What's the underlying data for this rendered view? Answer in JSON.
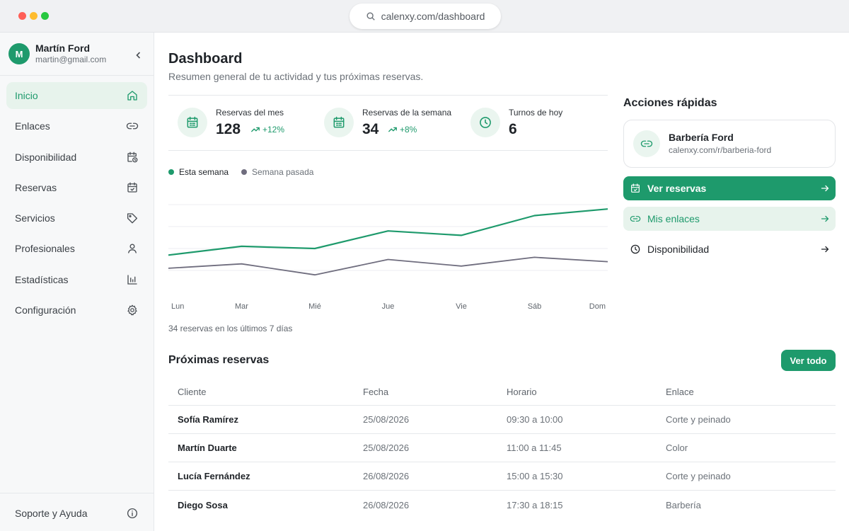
{
  "browser": {
    "url": "calenxy.com/dashboard"
  },
  "user": {
    "initial": "M",
    "name": "Martín Ford",
    "email": "martin@gmail.com"
  },
  "sidebar": {
    "items": [
      {
        "label": "Inicio",
        "icon": "home-icon",
        "active": true
      },
      {
        "label": "Enlaces",
        "icon": "link-icon"
      },
      {
        "label": "Disponibilidad",
        "icon": "calendar-clock-icon"
      },
      {
        "label": "Reservas",
        "icon": "calendar-check-icon"
      },
      {
        "label": "Servicios",
        "icon": "tag-icon"
      },
      {
        "label": "Profesionales",
        "icon": "user-icon"
      },
      {
        "label": "Estadísticas",
        "icon": "bar-chart-icon"
      },
      {
        "label": "Configuración",
        "icon": "gear-icon"
      }
    ],
    "support": {
      "label": "Soporte y Ayuda",
      "icon": "info-icon"
    }
  },
  "page": {
    "title": "Dashboard",
    "subtitle": "Resumen general de tu actividad y tus próximas reservas."
  },
  "stats": [
    {
      "label": "Reservas del mes",
      "value": "128",
      "trend": "+12%",
      "icon": "calendar-list-icon"
    },
    {
      "label": "Reservas de la semana",
      "value": "34",
      "trend": "+8%",
      "icon": "calendar-list-icon"
    },
    {
      "label": "Turnos de hoy",
      "value": "6",
      "icon": "clock-icon"
    }
  ],
  "chart_data": {
    "type": "line",
    "x": [
      "Lun",
      "Mar",
      "Mié",
      "Jue",
      "Vie",
      "Sáb",
      "Dom"
    ],
    "series": [
      {
        "name": "Esta semana",
        "color": "#1e9a6c",
        "values": [
          3.4,
          4.2,
          4.0,
          5.6,
          5.2,
          7.0,
          7.6
        ]
      },
      {
        "name": "Semana pasada",
        "color": "#6f6d7e",
        "values": [
          2.2,
          2.6,
          1.6,
          3.0,
          2.4,
          3.2,
          2.8
        ]
      }
    ],
    "ylim": [
      0,
      10
    ],
    "grid": true,
    "legend": "top-left",
    "caption": "34 reservas en los últimos 7 días"
  },
  "quick_actions": {
    "title": "Acciones rápidas",
    "link_card": {
      "name": "Barbería Ford",
      "url": "calenxy.com/r/barberia-ford",
      "icon": "link-icon"
    },
    "buttons": [
      {
        "label": "Ver reservas",
        "icon": "calendar-check-icon",
        "style": "primary"
      },
      {
        "label": "Mis enlaces",
        "icon": "link-icon",
        "style": "secondary"
      },
      {
        "label": "Disponibilidad",
        "icon": "clock-icon",
        "style": "plain"
      }
    ]
  },
  "upcoming": {
    "title": "Próximas reservas",
    "see_all": "Ver todo",
    "columns": [
      "Cliente",
      "Fecha",
      "Horario",
      "Enlace"
    ],
    "rows": [
      [
        "Sofía Ramírez",
        "25/08/2026",
        "09:30 a 10:00",
        "Corte y peinado"
      ],
      [
        "Martín Duarte",
        "25/08/2026",
        "11:00 a 11:45",
        "Color"
      ],
      [
        "Lucía Fernández",
        "26/08/2026",
        "15:00 a 15:30",
        "Corte y peinado"
      ],
      [
        "Diego Sosa",
        "26/08/2026",
        "17:30 a 18:15",
        "Barbería"
      ]
    ]
  },
  "colors": {
    "accent": "#1e9a6c",
    "accent_soft": "#e7f3ec",
    "muted": "#6b7178"
  }
}
